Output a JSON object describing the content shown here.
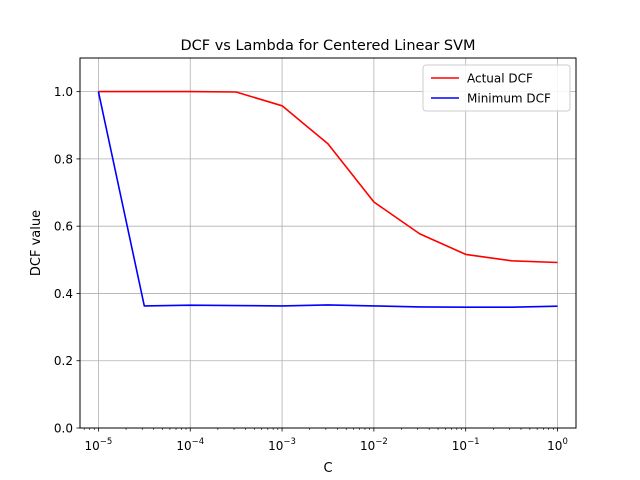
{
  "chart_data": {
    "type": "line",
    "title": "DCF vs Lambda for Centered Linear SVM",
    "xlabel": "C",
    "ylabel": "DCF value",
    "xscale": "log",
    "xlim": [
      6.3e-06,
      1.59
    ],
    "ylim": [
      0.0,
      1.1
    ],
    "grid": true,
    "legend_position": "top-right",
    "x_ticks": [
      {
        "value": 1e-05,
        "base": "10",
        "exp": "−5"
      },
      {
        "value": 0.0001,
        "base": "10",
        "exp": "−4"
      },
      {
        "value": 0.001,
        "base": "10",
        "exp": "−3"
      },
      {
        "value": 0.01,
        "base": "10",
        "exp": "−2"
      },
      {
        "value": 0.1,
        "base": "10",
        "exp": "−1"
      },
      {
        "value": 1,
        "base": "10",
        "exp": "0"
      }
    ],
    "y_ticks": [
      {
        "value": 0.0,
        "label": "0.0"
      },
      {
        "value": 0.2,
        "label": "0.2"
      },
      {
        "value": 0.4,
        "label": "0.4"
      },
      {
        "value": 0.6,
        "label": "0.6"
      },
      {
        "value": 0.8,
        "label": "0.8"
      },
      {
        "value": 1.0,
        "label": "1.0"
      }
    ],
    "x": [
      1e-05,
      3.16e-05,
      0.0001,
      0.000316,
      0.001,
      0.00316,
      0.01,
      0.0316,
      0.1,
      0.316,
      1
    ],
    "series": [
      {
        "name": "Actual DCF",
        "color": "#ff0000",
        "values": [
          1.0,
          1.0,
          1.0,
          0.999,
          0.958,
          0.845,
          0.672,
          0.577,
          0.516,
          0.497,
          0.492
        ]
      },
      {
        "name": "Minimum DCF",
        "color": "#0000ff",
        "values": [
          1.0,
          0.363,
          0.365,
          0.364,
          0.363,
          0.366,
          0.363,
          0.36,
          0.359,
          0.359,
          0.362
        ]
      }
    ]
  }
}
